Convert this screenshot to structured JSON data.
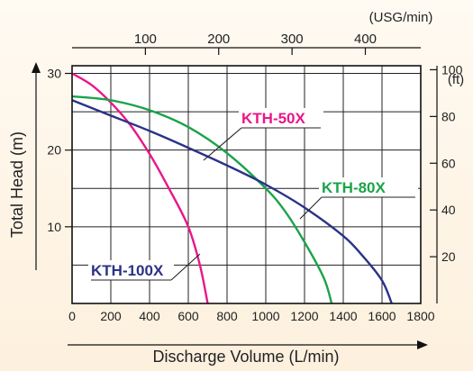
{
  "chart_data": {
    "type": "line",
    "xlabel": "Discharge Volume (L/min)",
    "ylabel": "Total Head (m)",
    "x_ticks": [
      0,
      200,
      400,
      600,
      800,
      1000,
      1200,
      1400,
      1600,
      1800
    ],
    "y_ticks": [
      10,
      20,
      30
    ],
    "xlim": [
      0,
      1800
    ],
    "ylim": [
      0,
      31
    ],
    "grid": true,
    "top_axis": {
      "unit_label": "(USG/min)",
      "ticks": [
        100,
        200,
        300,
        400
      ],
      "lpm_per_unit": 3.785
    },
    "right_axis": {
      "unit_label": "(ft)",
      "ticks": [
        20,
        40,
        60,
        80,
        100
      ],
      "m_per_unit": 0.3048
    },
    "series": [
      {
        "name": "KTH-50X",
        "color": "#e8178a",
        "x": [
          0,
          100,
          200,
          300,
          400,
          500,
          600,
          660,
          700
        ],
        "y": [
          30,
          28.5,
          26.2,
          23.3,
          19.5,
          15,
          10,
          5,
          0
        ]
      },
      {
        "name": "KTH-80X",
        "color": "#1aa34a",
        "x": [
          0,
          200,
          400,
          600,
          800,
          1000,
          1100,
          1200,
          1300,
          1340
        ],
        "y": [
          27,
          26.5,
          25.2,
          23,
          19.6,
          15,
          12,
          8,
          3.3,
          0
        ]
      },
      {
        "name": "KTH-100X",
        "color": "#2b3287",
        "x": [
          0,
          200,
          400,
          600,
          800,
          1000,
          1200,
          1400,
          1500,
          1600,
          1650
        ],
        "y": [
          26.5,
          24.5,
          22.5,
          20.3,
          18,
          15.5,
          12.5,
          8.8,
          6.2,
          3,
          0
        ]
      }
    ]
  }
}
